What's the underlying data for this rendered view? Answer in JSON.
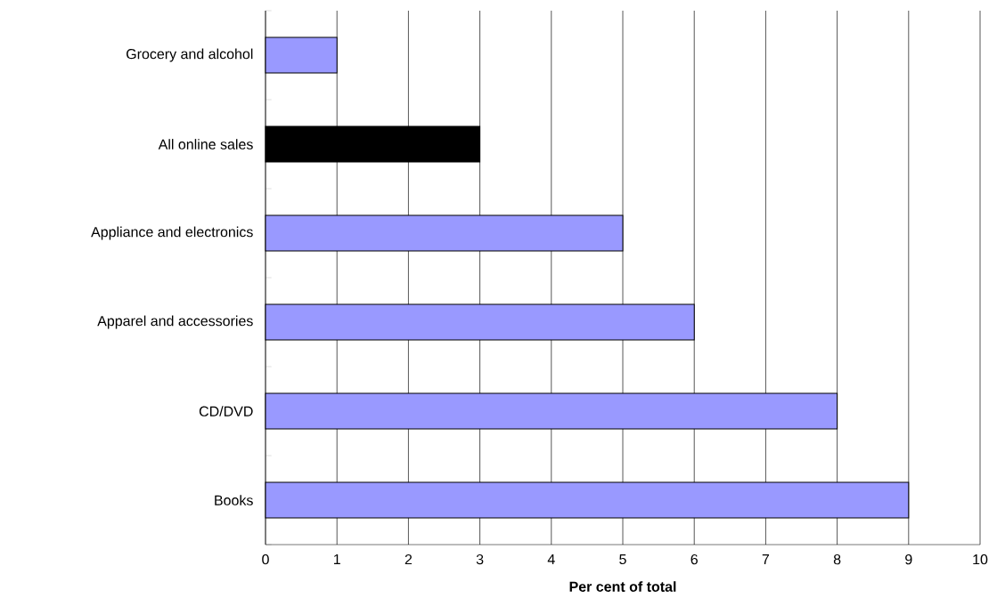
{
  "chart_data": {
    "type": "bar",
    "orientation": "horizontal",
    "xlabel": "Per cent of total",
    "categories": [
      "Grocery and alcohol",
      "All online sales",
      "Appliance and electronics",
      "Apparel and accessories",
      "CD/DVD",
      "Books"
    ],
    "values": [
      1,
      3,
      5,
      6,
      8,
      9
    ],
    "colors": [
      "#9999ff",
      "#000000",
      "#9999ff",
      "#9999ff",
      "#9999ff",
      "#9999ff"
    ],
    "xlim": [
      0,
      10
    ],
    "xticks": [
      0,
      1,
      2,
      3,
      4,
      5,
      6,
      7,
      8,
      9,
      10
    ],
    "grid": "x"
  }
}
